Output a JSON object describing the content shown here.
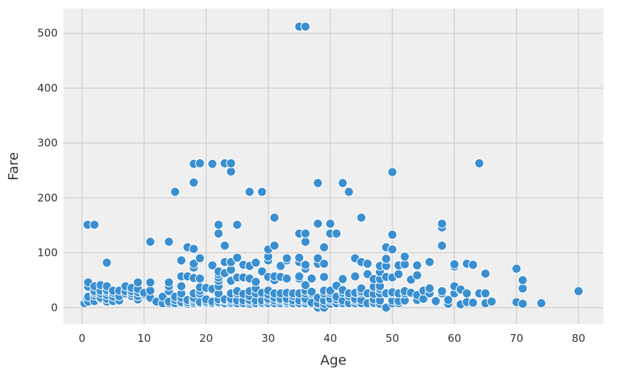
{
  "chart_data": {
    "type": "scatter",
    "xlabel": "Age",
    "ylabel": "Fare",
    "xlim": [
      -3,
      84
    ],
    "ylim": [
      -30,
      545
    ],
    "xticks": [
      0,
      10,
      20,
      30,
      40,
      50,
      60,
      70,
      80
    ],
    "yticks": [
      0,
      100,
      200,
      300,
      400,
      500
    ],
    "grid": true,
    "point_color": "#3a8fd0",
    "background": "#efefef",
    "points": [
      [
        0.4,
        8
      ],
      [
        0.8,
        15
      ],
      [
        0.9,
        151
      ],
      [
        1,
        11
      ],
      [
        1,
        20
      ],
      [
        1,
        38
      ],
      [
        1,
        46
      ],
      [
        2,
        12
      ],
      [
        2,
        22
      ],
      [
        2,
        27
      ],
      [
        2,
        30
      ],
      [
        2,
        39
      ],
      [
        2,
        151
      ],
      [
        3,
        16
      ],
      [
        3,
        18
      ],
      [
        3,
        26
      ],
      [
        3,
        31
      ],
      [
        3,
        41
      ],
      [
        4,
        11
      ],
      [
        4,
        16
      ],
      [
        4,
        23
      ],
      [
        4,
        29
      ],
      [
        4,
        32
      ],
      [
        4,
        39
      ],
      [
        4,
        82
      ],
      [
        5,
        12
      ],
      [
        5,
        20
      ],
      [
        5,
        27
      ],
      [
        5,
        31
      ],
      [
        6,
        13
      ],
      [
        6,
        21
      ],
      [
        6,
        31
      ],
      [
        7,
        26
      ],
      [
        7,
        30
      ],
      [
        7,
        39
      ],
      [
        8,
        21
      ],
      [
        8,
        26
      ],
      [
        8,
        30
      ],
      [
        8,
        36
      ],
      [
        9,
        15
      ],
      [
        9,
        21
      ],
      [
        9,
        28
      ],
      [
        9,
        34
      ],
      [
        9,
        46
      ],
      [
        10,
        24
      ],
      [
        10,
        27
      ],
      [
        11,
        18
      ],
      [
        11,
        31
      ],
      [
        11,
        46
      ],
      [
        11,
        120
      ],
      [
        12,
        11
      ],
      [
        13,
        8
      ],
      [
        13,
        20
      ],
      [
        14,
        8
      ],
      [
        14,
        11
      ],
      [
        14,
        30
      ],
      [
        14,
        39
      ],
      [
        14,
        46
      ],
      [
        14,
        120
      ],
      [
        15,
        8
      ],
      [
        15,
        14
      ],
      [
        15,
        20
      ],
      [
        15,
        211
      ],
      [
        16,
        8
      ],
      [
        16,
        10
      ],
      [
        16,
        18
      ],
      [
        16,
        26
      ],
      [
        16,
        39
      ],
      [
        16,
        57
      ],
      [
        16,
        86
      ],
      [
        17,
        7
      ],
      [
        17,
        10
      ],
      [
        17,
        14
      ],
      [
        17,
        57
      ],
      [
        17,
        110
      ],
      [
        18,
        8
      ],
      [
        18,
        11
      ],
      [
        18,
        15
      ],
      [
        18,
        18
      ],
      [
        18,
        26
      ],
      [
        18,
        54
      ],
      [
        18,
        73
      ],
      [
        18,
        80
      ],
      [
        18,
        107
      ],
      [
        18,
        228
      ],
      [
        18,
        262
      ],
      [
        19,
        7
      ],
      [
        19,
        8
      ],
      [
        19,
        10
      ],
      [
        19,
        26
      ],
      [
        19,
        31
      ],
      [
        19,
        37
      ],
      [
        19,
        53
      ],
      [
        19,
        90
      ],
      [
        19,
        263
      ],
      [
        20,
        7
      ],
      [
        20,
        9
      ],
      [
        20,
        11
      ],
      [
        20,
        15
      ],
      [
        20,
        36
      ],
      [
        21,
        7
      ],
      [
        21,
        8
      ],
      [
        21,
        11
      ],
      [
        21,
        34
      ],
      [
        21,
        77
      ],
      [
        21,
        262
      ],
      [
        22,
        7
      ],
      [
        22,
        9
      ],
      [
        22,
        10
      ],
      [
        22,
        15
      ],
      [
        22,
        26
      ],
      [
        22,
        39
      ],
      [
        22,
        49
      ],
      [
        22,
        55
      ],
      [
        22,
        61
      ],
      [
        22,
        66
      ],
      [
        22,
        135
      ],
      [
        22,
        151
      ],
      [
        23,
        7
      ],
      [
        23,
        8
      ],
      [
        23,
        13
      ],
      [
        23,
        15
      ],
      [
        23,
        63
      ],
      [
        23,
        83
      ],
      [
        23,
        113
      ],
      [
        23,
        263
      ],
      [
        24,
        7
      ],
      [
        24,
        9
      ],
      [
        24,
        13
      ],
      [
        24,
        16
      ],
      [
        24,
        26
      ],
      [
        24,
        49
      ],
      [
        24,
        69
      ],
      [
        24,
        83
      ],
      [
        24,
        248
      ],
      [
        24,
        263
      ],
      [
        25,
        7
      ],
      [
        25,
        8
      ],
      [
        25,
        13
      ],
      [
        25,
        26
      ],
      [
        25,
        30
      ],
      [
        25,
        55
      ],
      [
        25,
        91
      ],
      [
        25,
        151
      ],
      [
        26,
        7
      ],
      [
        26,
        8
      ],
      [
        26,
        13
      ],
      [
        26,
        25
      ],
      [
        26,
        55
      ],
      [
        26,
        78
      ],
      [
        27,
        7
      ],
      [
        27,
        11
      ],
      [
        27,
        14
      ],
      [
        27,
        21
      ],
      [
        27,
        30
      ],
      [
        27,
        53
      ],
      [
        27,
        76
      ],
      [
        27,
        211
      ],
      [
        28,
        7
      ],
      [
        28,
        8
      ],
      [
        28,
        13
      ],
      [
        28,
        26
      ],
      [
        28,
        35
      ],
      [
        28,
        47
      ],
      [
        28,
        82
      ],
      [
        29,
        7
      ],
      [
        29,
        9
      ],
      [
        29,
        13
      ],
      [
        29,
        27
      ],
      [
        29,
        66
      ],
      [
        29,
        211
      ],
      [
        30,
        7
      ],
      [
        30,
        8
      ],
      [
        30,
        13
      ],
      [
        30,
        16
      ],
      [
        30,
        24
      ],
      [
        30,
        31
      ],
      [
        30,
        56
      ],
      [
        30,
        86
      ],
      [
        30,
        93
      ],
      [
        30,
        106
      ],
      [
        31,
        7
      ],
      [
        31,
        8
      ],
      [
        31,
        13
      ],
      [
        31,
        18
      ],
      [
        31,
        26
      ],
      [
        31,
        50
      ],
      [
        31,
        57
      ],
      [
        31,
        113
      ],
      [
        31,
        164
      ],
      [
        32,
        7
      ],
      [
        32,
        8
      ],
      [
        32,
        13
      ],
      [
        32,
        16
      ],
      [
        32,
        26
      ],
      [
        32,
        56
      ],
      [
        32,
        76
      ],
      [
        33,
        7
      ],
      [
        33,
        9
      ],
      [
        33,
        12
      ],
      [
        33,
        16
      ],
      [
        33,
        27
      ],
      [
        33,
        53
      ],
      [
        33,
        86
      ],
      [
        33,
        90
      ],
      [
        34,
        7
      ],
      [
        34,
        8
      ],
      [
        34,
        13
      ],
      [
        34,
        21
      ],
      [
        34,
        26
      ],
      [
        35,
        7
      ],
      [
        35,
        8
      ],
      [
        35,
        13
      ],
      [
        35,
        26
      ],
      [
        35,
        53
      ],
      [
        35,
        57
      ],
      [
        35,
        83
      ],
      [
        35,
        91
      ],
      [
        35,
        135
      ],
      [
        35,
        512
      ],
      [
        36,
        7
      ],
      [
        36,
        8
      ],
      [
        36,
        13
      ],
      [
        36,
        16
      ],
      [
        36,
        26
      ],
      [
        36,
        31
      ],
      [
        36,
        41
      ],
      [
        36,
        71
      ],
      [
        36,
        78
      ],
      [
        36,
        120
      ],
      [
        36,
        135
      ],
      [
        36,
        512
      ],
      [
        37,
        7
      ],
      [
        37,
        9
      ],
      [
        37,
        26
      ],
      [
        37,
        29
      ],
      [
        37,
        52
      ],
      [
        37,
        53
      ],
      [
        38,
        0
      ],
      [
        38,
        7
      ],
      [
        38,
        8
      ],
      [
        38,
        18
      ],
      [
        38,
        80
      ],
      [
        38,
        90
      ],
      [
        38,
        153
      ],
      [
        38,
        227
      ],
      [
        39,
        0
      ],
      [
        39,
        7
      ],
      [
        39,
        13
      ],
      [
        39,
        26
      ],
      [
        39,
        31
      ],
      [
        39,
        56
      ],
      [
        39,
        80
      ],
      [
        39,
        110
      ],
      [
        40,
        7
      ],
      [
        40,
        13
      ],
      [
        40,
        16
      ],
      [
        40,
        27
      ],
      [
        40,
        31
      ],
      [
        40,
        135
      ],
      [
        40,
        153
      ],
      [
        41,
        7
      ],
      [
        41,
        8
      ],
      [
        41,
        15
      ],
      [
        41,
        20
      ],
      [
        41,
        40
      ],
      [
        41,
        135
      ],
      [
        42,
        7
      ],
      [
        42,
        8
      ],
      [
        42,
        13
      ],
      [
        42,
        27
      ],
      [
        42,
        32
      ],
      [
        42,
        52
      ],
      [
        42,
        227
      ],
      [
        43,
        7
      ],
      [
        43,
        8
      ],
      [
        43,
        21
      ],
      [
        43,
        26
      ],
      [
        43,
        211
      ],
      [
        44,
        8
      ],
      [
        44,
        13
      ],
      [
        44,
        16
      ],
      [
        44,
        27
      ],
      [
        44,
        57
      ],
      [
        44,
        90
      ],
      [
        45,
        7
      ],
      [
        45,
        8
      ],
      [
        45,
        14
      ],
      [
        45,
        27
      ],
      [
        45,
        30
      ],
      [
        45,
        35
      ],
      [
        45,
        83
      ],
      [
        45,
        164
      ],
      [
        46,
        8
      ],
      [
        46,
        26
      ],
      [
        46,
        61
      ],
      [
        46,
        80
      ],
      [
        47,
        7
      ],
      [
        47,
        9
      ],
      [
        47,
        15
      ],
      [
        47,
        25
      ],
      [
        47,
        38
      ],
      [
        47,
        52
      ],
      [
        48,
        7
      ],
      [
        48,
        13
      ],
      [
        48,
        26
      ],
      [
        48,
        34
      ],
      [
        48,
        39
      ],
      [
        48,
        52
      ],
      [
        48,
        65
      ],
      [
        48,
        76
      ],
      [
        49,
        0
      ],
      [
        49,
        26
      ],
      [
        49,
        56
      ],
      [
        49,
        76
      ],
      [
        49,
        89
      ],
      [
        49,
        110
      ],
      [
        50,
        8
      ],
      [
        50,
        13
      ],
      [
        50,
        26
      ],
      [
        50,
        28
      ],
      [
        50,
        55
      ],
      [
        50,
        106
      ],
      [
        50,
        133
      ],
      [
        50,
        247
      ],
      [
        51,
        8
      ],
      [
        51,
        12
      ],
      [
        51,
        26
      ],
      [
        51,
        61
      ],
      [
        51,
        77
      ],
      [
        52,
        13
      ],
      [
        52,
        26
      ],
      [
        52,
        30
      ],
      [
        52,
        79
      ],
      [
        52,
        93
      ],
      [
        53,
        27
      ],
      [
        53,
        51
      ],
      [
        54,
        14
      ],
      [
        54,
        23
      ],
      [
        54,
        59
      ],
      [
        54,
        77
      ],
      [
        55,
        16
      ],
      [
        55,
        31
      ],
      [
        56,
        26
      ],
      [
        56,
        35
      ],
      [
        56,
        83
      ],
      [
        57,
        10
      ],
      [
        57,
        12
      ],
      [
        58,
        26
      ],
      [
        58,
        30
      ],
      [
        58,
        113
      ],
      [
        58,
        146
      ],
      [
        58,
        153
      ],
      [
        59,
        7
      ],
      [
        59,
        14
      ],
      [
        60,
        26
      ],
      [
        60,
        39
      ],
      [
        60,
        75
      ],
      [
        60,
        79
      ],
      [
        61,
        6
      ],
      [
        61,
        32
      ],
      [
        61,
        33
      ],
      [
        62,
        10
      ],
      [
        62,
        26
      ],
      [
        62,
        80
      ],
      [
        63,
        9
      ],
      [
        63,
        78
      ],
      [
        64,
        26
      ],
      [
        64,
        263
      ],
      [
        65,
        8
      ],
      [
        65,
        26
      ],
      [
        65,
        62
      ],
      [
        66,
        11
      ],
      [
        70,
        10
      ],
      [
        70,
        71
      ],
      [
        71,
        7
      ],
      [
        71,
        35
      ],
      [
        71,
        50
      ],
      [
        74,
        8
      ],
      [
        80,
        30
      ]
    ]
  }
}
